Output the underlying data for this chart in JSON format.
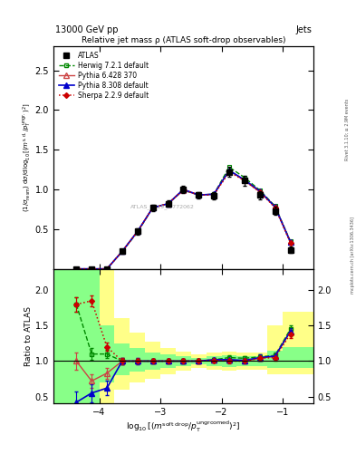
{
  "title": "Relative jet mass ρ (ATLAS soft-drop observables)",
  "header_left": "13000 GeV pp",
  "header_right": "Jets",
  "watermark": "ATLAS_2019_I1772062",
  "rivet_text": "Rivet 3.1.10; ≥ 2.9M events",
  "mcplots_text": "mcplots.cern.ch [arXiv:1306.3436]",
  "ylabel_ratio": "Ratio to ATLAS",
  "xlim": [
    -4.75,
    -0.5
  ],
  "ylim_main": [
    0.0,
    2.8
  ],
  "ylim_ratio": [
    0.4,
    2.3
  ],
  "x_ticks": [
    -4,
    -3,
    -2,
    -1
  ],
  "yticks_main": [
    0.5,
    1.0,
    1.5,
    2.0,
    2.5
  ],
  "yticks_ratio": [
    0.5,
    1.0,
    1.5,
    2.0
  ],
  "atlas_x": [
    -4.375,
    -4.125,
    -3.875,
    -3.625,
    -3.375,
    -3.125,
    -2.875,
    -2.625,
    -2.375,
    -2.125,
    -1.875,
    -1.625,
    -1.375,
    -1.125,
    -0.875
  ],
  "atlas_y": [
    0.0,
    0.0,
    0.0,
    0.22,
    0.47,
    0.77,
    0.82,
    1.0,
    0.93,
    0.92,
    1.22,
    1.11,
    0.93,
    0.73,
    0.24
  ],
  "atlas_yerr": [
    0.005,
    0.005,
    0.005,
    0.03,
    0.04,
    0.04,
    0.04,
    0.05,
    0.04,
    0.05,
    0.06,
    0.06,
    0.05,
    0.05,
    0.04
  ],
  "herwig_x": [
    -4.375,
    -4.125,
    -3.875,
    -3.625,
    -3.375,
    -3.125,
    -2.875,
    -2.625,
    -2.375,
    -2.125,
    -1.875,
    -1.625,
    -1.375,
    -1.125,
    -0.875
  ],
  "herwig_y": [
    0.0,
    0.0,
    0.0,
    0.22,
    0.46,
    0.77,
    0.82,
    0.99,
    0.93,
    0.94,
    1.28,
    1.15,
    0.99,
    0.79,
    0.35
  ],
  "pythia6_x": [
    -4.375,
    -4.125,
    -3.875,
    -3.625,
    -3.375,
    -3.125,
    -2.875,
    -2.625,
    -2.375,
    -2.125,
    -1.875,
    -1.625,
    -1.375,
    -1.125,
    -0.875
  ],
  "pythia6_y": [
    0.0,
    0.0,
    0.0,
    0.22,
    0.47,
    0.77,
    0.82,
    0.99,
    0.93,
    0.94,
    1.24,
    1.11,
    0.97,
    0.78,
    0.34
  ],
  "pythia8_x": [
    -4.375,
    -4.125,
    -3.875,
    -3.625,
    -3.375,
    -3.125,
    -2.875,
    -2.625,
    -2.375,
    -2.125,
    -1.875,
    -1.625,
    -1.375,
    -1.125,
    -0.875
  ],
  "pythia8_y": [
    0.0,
    0.0,
    0.0,
    0.22,
    0.47,
    0.77,
    0.82,
    1.0,
    0.93,
    0.94,
    1.24,
    1.12,
    0.98,
    0.78,
    0.34
  ],
  "sherpa_x": [
    -4.375,
    -4.125,
    -3.875,
    -3.625,
    -3.375,
    -3.125,
    -2.875,
    -2.625,
    -2.375,
    -2.125,
    -1.875,
    -1.625,
    -1.375,
    -1.125,
    -0.875
  ],
  "sherpa_y": [
    0.0,
    0.0,
    0.0,
    0.22,
    0.47,
    0.77,
    0.82,
    1.0,
    0.93,
    0.93,
    1.22,
    1.11,
    0.97,
    0.77,
    0.33
  ],
  "ratio_herwig_y": [
    1.8,
    1.1,
    1.1,
    1.0,
    1.0,
    1.0,
    1.0,
    1.0,
    1.0,
    1.02,
    1.05,
    1.04,
    1.06,
    1.08,
    1.45
  ],
  "ratio_pythia6_y": [
    1.0,
    0.72,
    0.83,
    1.0,
    1.0,
    1.0,
    1.0,
    1.0,
    1.0,
    1.02,
    1.02,
    1.0,
    1.04,
    1.07,
    1.42
  ],
  "ratio_pythia8_y": [
    0.42,
    0.55,
    0.62,
    1.0,
    1.0,
    1.0,
    1.0,
    1.0,
    1.0,
    1.02,
    1.02,
    1.01,
    1.05,
    1.07,
    1.42
  ],
  "ratio_sherpa_y": [
    1.8,
    1.85,
    1.2,
    1.0,
    1.0,
    1.0,
    1.0,
    1.0,
    1.0,
    1.01,
    1.0,
    1.0,
    1.04,
    1.05,
    1.38
  ],
  "ratio_pythia8_err": [
    0.15,
    0.13,
    0.1,
    0.05,
    0.04,
    0.03,
    0.03,
    0.03,
    0.03,
    0.03,
    0.03,
    0.03,
    0.04,
    0.04,
    0.05
  ],
  "ratio_pythia6_err": [
    0.12,
    0.1,
    0.08,
    0.05,
    0.04,
    0.03,
    0.03,
    0.03,
    0.03,
    0.03,
    0.03,
    0.03,
    0.04,
    0.04,
    0.05
  ],
  "ratio_sherpa_err": [
    0.1,
    0.08,
    0.06,
    0.04,
    0.03,
    0.03,
    0.03,
    0.03,
    0.03,
    0.03,
    0.03,
    0.03,
    0.03,
    0.04,
    0.05
  ],
  "ratio_herwig_err": [
    0.1,
    0.08,
    0.06,
    0.04,
    0.03,
    0.03,
    0.03,
    0.03,
    0.03,
    0.03,
    0.03,
    0.03,
    0.03,
    0.04,
    0.05
  ],
  "band_x_edges": [
    -4.75,
    -4.5,
    -4.25,
    -4.0,
    -3.75,
    -3.5,
    -3.25,
    -3.0,
    -2.75,
    -2.5,
    -2.25,
    -2.0,
    -1.75,
    -1.5,
    -1.25,
    -1.0,
    -0.75,
    -0.5
  ],
  "band_yellow_bot": [
    0.4,
    0.4,
    0.4,
    0.4,
    0.6,
    0.7,
    0.75,
    0.82,
    0.87,
    0.9,
    0.88,
    0.87,
    0.88,
    0.88,
    0.82,
    0.82,
    0.82
  ],
  "band_yellow_top": [
    2.3,
    2.3,
    2.3,
    2.3,
    1.6,
    1.4,
    1.28,
    1.18,
    1.13,
    1.1,
    1.12,
    1.13,
    1.12,
    1.12,
    1.5,
    1.7,
    1.7
  ],
  "band_green_bot": [
    0.4,
    0.4,
    0.4,
    0.7,
    0.8,
    0.85,
    0.88,
    0.9,
    0.93,
    0.95,
    0.93,
    0.92,
    0.93,
    0.93,
    0.9,
    0.9,
    0.9
  ],
  "band_green_top": [
    2.3,
    2.3,
    2.3,
    1.5,
    1.25,
    1.18,
    1.12,
    1.1,
    1.07,
    1.05,
    1.07,
    1.08,
    1.07,
    1.07,
    1.15,
    1.2,
    1.2
  ],
  "color_atlas": "#000000",
  "color_herwig": "#008800",
  "color_pythia6": "#cc4444",
  "color_pythia8": "#0000cc",
  "color_sherpa": "#cc0000",
  "color_yellow": "#ffff88",
  "color_green": "#88ff88",
  "fig_width": 3.93,
  "fig_height": 5.12
}
